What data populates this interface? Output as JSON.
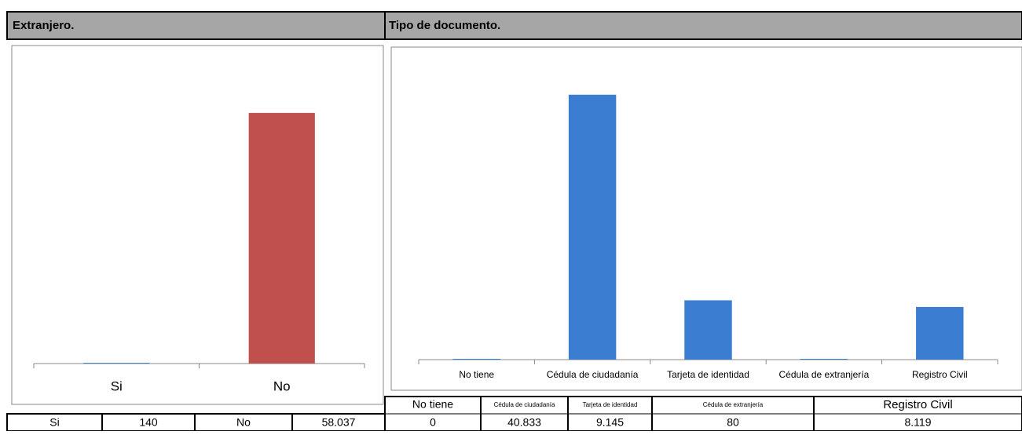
{
  "chart_data": [
    {
      "type": "bar",
      "title": "Extranjero.",
      "categories": [
        "Si",
        "No"
      ],
      "values": [
        140,
        58037
      ],
      "value_labels": [
        "140",
        "58.037"
      ],
      "colors": [
        "#4f81bd",
        "#c0504d"
      ]
    },
    {
      "type": "bar",
      "title": "Tipo de documento.",
      "categories": [
        "No tiene",
        "Cédula de ciudadanía",
        "Tarjeta de identidad",
        "Cédula de extranjería",
        "Registro Civil"
      ],
      "values": [
        0,
        40833,
        9145,
        80,
        8119
      ],
      "value_labels": [
        "0",
        "40.833",
        "9.145",
        "80",
        "8.119"
      ],
      "color": "#3a7dd1"
    }
  ]
}
